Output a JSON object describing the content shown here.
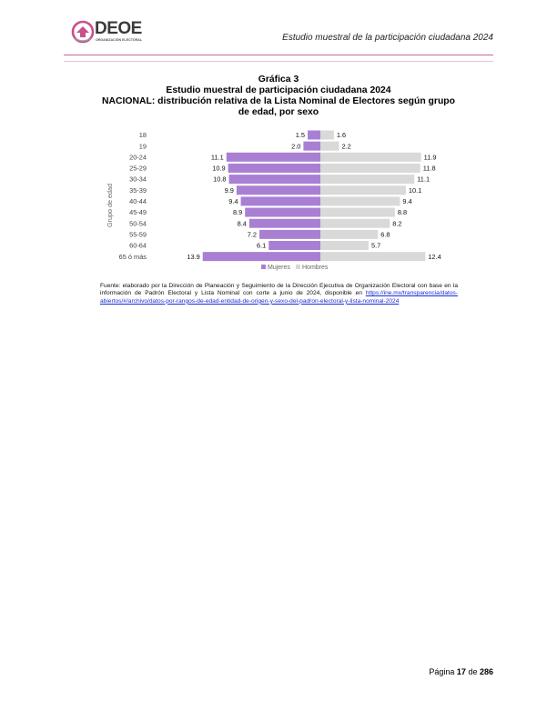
{
  "header": {
    "logo_text": "DEOE",
    "logo_subtitle": "ORGANIZACIÓN ELECTORAL",
    "doc_title": "Estudio muestral de la participación ciudadana 2024"
  },
  "figure": {
    "number": "Gráfica 3",
    "title_line1": "Estudio muestral de participación ciudadana 2024",
    "title_line2": "NACIONAL: distribución relativa de la Lista Nominal de Electores según grupo de edad, por sexo"
  },
  "chart_data": {
    "type": "bar",
    "orientation": "horizontal-population-pyramid",
    "ylabel": "Grupo de edad",
    "categories": [
      "18",
      "19",
      "20-24",
      "25-29",
      "30-34",
      "35-39",
      "40-44",
      "45-49",
      "50-54",
      "55-59",
      "60-64",
      "65 ó más"
    ],
    "series": [
      {
        "name": "Mujeres",
        "color": "#a97fd3",
        "values": [
          1.5,
          2.0,
          11.1,
          10.9,
          10.8,
          9.9,
          9.4,
          8.9,
          8.4,
          7.2,
          6.1,
          13.9
        ]
      },
      {
        "name": "Hombres",
        "color": "#d9d9d9",
        "values": [
          1.6,
          2.2,
          11.9,
          11.8,
          11.1,
          10.1,
          9.4,
          8.8,
          8.2,
          6.8,
          5.7,
          12.4
        ]
      }
    ],
    "value_labels": {
      "Mujeres": [
        "1.5",
        "2.0",
        "11.1",
        "10.9",
        "10.8",
        "9.9",
        "9.4",
        "8.9",
        "8.4",
        "7.2",
        "6.1",
        "13.9"
      ],
      "Hombres": [
        "1.6",
        "2.2",
        "11.9",
        "11.8",
        "11.1",
        "10.1",
        "9.4",
        "8.8",
        "8.2",
        "6.8",
        "5.7",
        "12.4"
      ]
    },
    "legend_position": "bottom-center",
    "grid": false
  },
  "source": {
    "text": "Fuente: elaborado por la Dirección de Planeación y Seguimiento de la Dirección Ejecutiva de Organización Electoral con base en la información de Padrón Electoral y Lista Nominal con corte a junio de 2024, disponible en",
    "link": "https://ine.mx/transparencia/datos-abiertos/#/archivo/datos-por-rangos-de-edad-entidad-de-origen-y-sexo-del-padron-electoral-y-lista-nominal-2024"
  },
  "footer": {
    "page_label": "Página",
    "page_number": "17",
    "of_label": "de",
    "total_pages": "286"
  }
}
